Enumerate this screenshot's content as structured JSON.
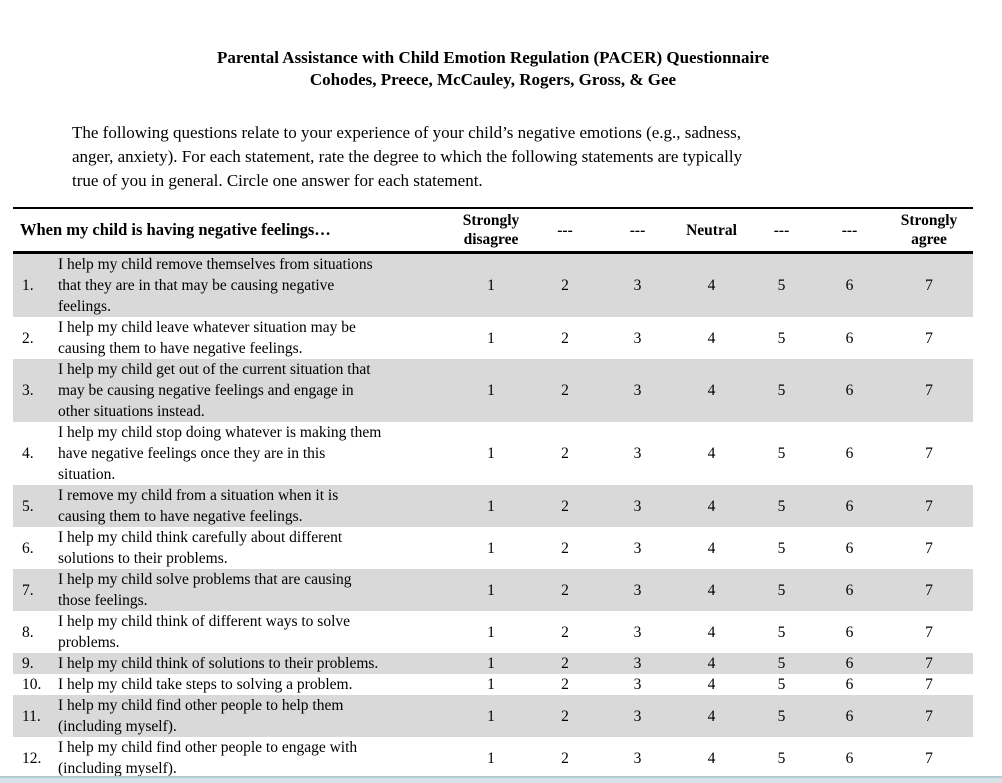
{
  "document": {
    "title": "Parental Assistance with Child Emotion Regulation (PACER) Questionnaire",
    "authors": "Cohodes, Preece, McCauley, Rogers, Gross, & Gee",
    "intro_lines": [
      "The following questions relate to your experience of your child’s negative emotions (e.g., sadness,",
      "anger, anxiety). For each statement, rate the degree to which the following statements are typically",
      "true of you in general. Circle one answer for each statement."
    ],
    "table": {
      "stem_header": "When my child is having negative feelings…",
      "scale_headers": [
        "Strongly disagree",
        "---",
        "---",
        "Neutral",
        "---",
        "---",
        "Strongly agree"
      ],
      "scale_values": [
        "1",
        "2",
        "3",
        "4",
        "5",
        "6",
        "7"
      ],
      "items": [
        {
          "number": "1.",
          "text": "I help my child remove themselves from situations\nthat they are in that may be causing negative\nfeelings."
        },
        {
          "number": "2.",
          "text": "I help my child leave whatever situation may be\ncausing them to have negative feelings."
        },
        {
          "number": "3.",
          "text": "I help my child get out of the current situation that\nmay be causing negative feelings and engage in\nother situations instead."
        },
        {
          "number": "4.",
          "text": "I help my child stop doing whatever is making them\nhave negative feelings once they are in this\nsituation."
        },
        {
          "number": "5.",
          "text": "I remove my child from a situation when it is\ncausing them to have negative feelings."
        },
        {
          "number": "6.",
          "text": "I help my child think carefully about different\nsolutions to their problems."
        },
        {
          "number": "7.",
          "text": "I help my child solve problems that are causing\nthose feelings."
        },
        {
          "number": "8.",
          "text": "I help my child think of different ways to solve\nproblems."
        },
        {
          "number": "9.",
          "text": "I help my child think of solutions to their problems."
        },
        {
          "number": "10.",
          "text": "I help my child take steps to solving a problem."
        },
        {
          "number": "11.",
          "text": "I help my child find other people to help them\n(including myself)."
        },
        {
          "number": "12.",
          "text": "I help my child find other people to engage with\n(including myself)."
        }
      ]
    },
    "colors": {
      "row_shade": "#d9d9d9",
      "table_rule": "#000000",
      "page_edge_strip_top": "#b6cad2",
      "page_edge_strip": "#d7e3e8"
    }
  }
}
